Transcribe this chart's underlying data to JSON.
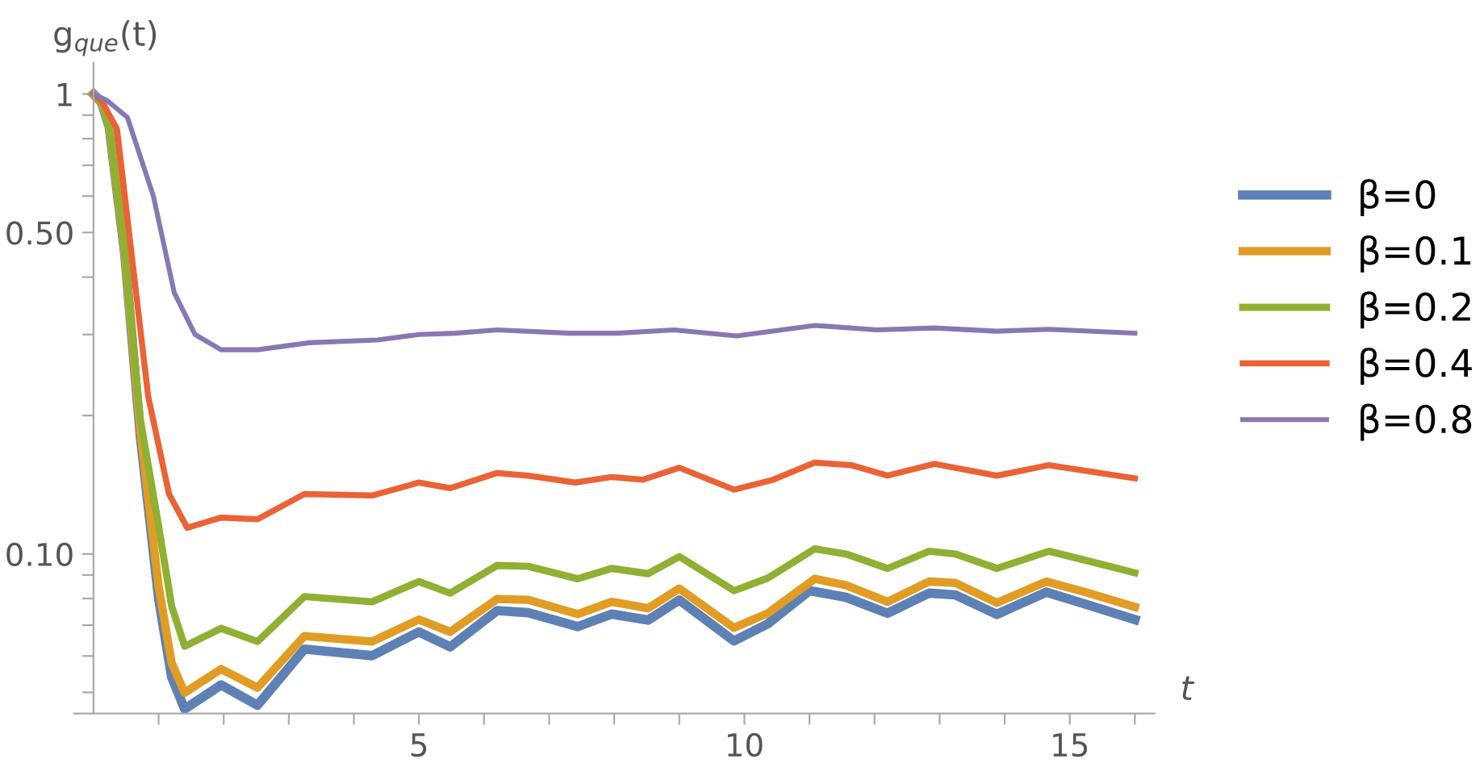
{
  "chart_data": {
    "type": "line",
    "xlabel": "t",
    "ylabel": "g$_{que}$(t)",
    "log": "y",
    "grid": false,
    "legend": "right",
    "line_style": "solid",
    "marker": "none",
    "xlim": [
      -0.3,
      16.3
    ],
    "xticks": [
      {
        "value": 1,
        "label": null
      },
      {
        "value": 2,
        "label": null
      },
      {
        "value": 3,
        "label": null
      },
      {
        "value": 4,
        "label": null
      },
      5,
      {
        "value": 6,
        "label": null
      },
      {
        "value": 7,
        "label": null
      },
      {
        "value": 8,
        "label": null
      },
      {
        "value": 9,
        "label": null
      },
      10,
      {
        "value": 11,
        "label": null
      },
      {
        "value": 12,
        "label": null
      },
      {
        "value": 13,
        "label": null
      },
      {
        "value": 14,
        "label": null
      },
      15,
      {
        "value": 16,
        "label": null
      }
    ],
    "ylim": [
      0.045,
      1.17
    ],
    "yticks": [
      {
        "value": 0.05,
        "label": null
      },
      {
        "value": 0.06,
        "label": null
      },
      {
        "value": 0.07,
        "label": null
      },
      {
        "value": 0.08,
        "label": null
      },
      {
        "value": 0.09,
        "label": null
      },
      {
        "value": 0.1,
        "label": "0.10"
      },
      {
        "value": 0.2,
        "label": null
      },
      {
        "value": 0.3,
        "label": null
      },
      {
        "value": 0.4,
        "label": null
      },
      {
        "value": 0.5,
        "label": "0.50"
      },
      {
        "value": 0.6,
        "label": null
      },
      {
        "value": 0.7,
        "label": null
      },
      {
        "value": 0.8,
        "label": null
      },
      {
        "value": 0.9,
        "label": null
      },
      1
    ],
    "series": [
      {
        "name": "β=0",
        "color": "#5e81b5",
        "x": [
          0,
          0.12,
          0.24,
          0.48,
          0.72,
          1.0,
          1.2,
          1.4,
          1.96,
          2.52,
          3.24,
          4.28,
          5.0,
          5.48,
          6.2,
          6.68,
          7.44,
          7.96,
          8.52,
          9.0,
          9.84,
          10.36,
          11.0,
          11.56,
          12.2,
          12.84,
          13.24,
          13.88,
          14.64,
          15.24,
          16.0
        ],
        "values": [
          1,
          0.96,
          0.85,
          0.45,
          0.18,
          0.08,
          0.054,
          0.046,
          0.0519,
          0.0469,
          0.0621,
          0.0601,
          0.0677,
          0.0628,
          0.0753,
          0.0745,
          0.0695,
          0.074,
          0.0718,
          0.0794,
          0.0647,
          0.0705,
          0.0832,
          0.0805,
          0.0743,
          0.0822,
          0.0815,
          0.0739,
          0.0826,
          0.0778,
          0.072
        ]
      },
      {
        "name": "β=0.1",
        "color": "#e19c24",
        "x": [
          0,
          0.12,
          0.24,
          0.48,
          0.72,
          1.0,
          1.2,
          1.4,
          1.96,
          2.52,
          3.24,
          4.28,
          5.0,
          5.48,
          6.2,
          6.68,
          7.44,
          7.96,
          8.52,
          9.0,
          9.84,
          10.36,
          11.08,
          11.56,
          12.2,
          12.84,
          13.24,
          13.88,
          14.64,
          15.24,
          16.0
        ],
        "values": [
          1,
          0.96,
          0.85,
          0.45,
          0.185,
          0.085,
          0.058,
          0.0499,
          0.0562,
          0.0512,
          0.0663,
          0.0645,
          0.072,
          0.0677,
          0.0798,
          0.0795,
          0.074,
          0.0787,
          0.0762,
          0.0841,
          0.0691,
          0.0743,
          0.0883,
          0.0855,
          0.0787,
          0.0871,
          0.0865,
          0.0783,
          0.0871,
          0.0826,
          0.0767
        ]
      },
      {
        "name": "β=0.2",
        "color": "#8fb032",
        "x": [
          0,
          0.12,
          0.24,
          0.48,
          0.72,
          1.0,
          1.2,
          1.4,
          1.96,
          2.52,
          3.24,
          4.28,
          5.0,
          5.48,
          6.2,
          6.68,
          7.44,
          7.96,
          8.52,
          9.0,
          9.84,
          10.36,
          11.08,
          11.56,
          12.2,
          12.84,
          13.24,
          13.88,
          14.68,
          15.24,
          16.0
        ],
        "values": [
          1,
          0.96,
          0.85,
          0.45,
          0.196,
          0.115,
          0.077,
          0.063,
          0.0689,
          0.0645,
          0.0808,
          0.0787,
          0.0871,
          0.0822,
          0.0944,
          0.094,
          0.0883,
          0.093,
          0.0906,
          0.0987,
          0.0832,
          0.0886,
          0.1026,
          0.1,
          0.093,
          0.1014,
          0.1,
          0.093,
          0.1014,
          0.0969,
          0.091
        ]
      },
      {
        "name": "β=0.4",
        "color": "#eb6235",
        "x": [
          0,
          0.12,
          0.36,
          0.6,
          0.84,
          1.16,
          1.44,
          1.96,
          2.52,
          3.24,
          4.28,
          5.0,
          5.48,
          6.2,
          6.68,
          7.4,
          7.96,
          8.44,
          9.0,
          9.84,
          10.44,
          11.08,
          11.64,
          12.2,
          12.92,
          13.88,
          14.68,
          16.0
        ],
        "values": [
          1,
          0.97,
          0.84,
          0.43,
          0.22,
          0.135,
          0.114,
          0.12,
          0.119,
          0.135,
          0.134,
          0.143,
          0.139,
          0.15,
          0.148,
          0.143,
          0.147,
          0.145,
          0.154,
          0.138,
          0.145,
          0.158,
          0.156,
          0.148,
          0.157,
          0.148,
          0.156,
          0.146
        ]
      },
      {
        "name": "β=0.8",
        "color": "#8778b3",
        "x": [
          0,
          0.2,
          0.52,
          0.92,
          1.24,
          1.56,
          1.96,
          2.52,
          3.32,
          4.36,
          5.0,
          5.56,
          6.2,
          7.32,
          8.04,
          8.92,
          9.88,
          11.08,
          12.04,
          12.92,
          13.88,
          14.68,
          16.0
        ],
        "values": [
          1,
          0.97,
          0.89,
          0.6,
          0.37,
          0.3,
          0.278,
          0.278,
          0.288,
          0.292,
          0.3,
          0.302,
          0.307,
          0.302,
          0.302,
          0.307,
          0.298,
          0.314,
          0.307,
          0.31,
          0.305,
          0.308,
          0.302
        ]
      }
    ]
  }
}
